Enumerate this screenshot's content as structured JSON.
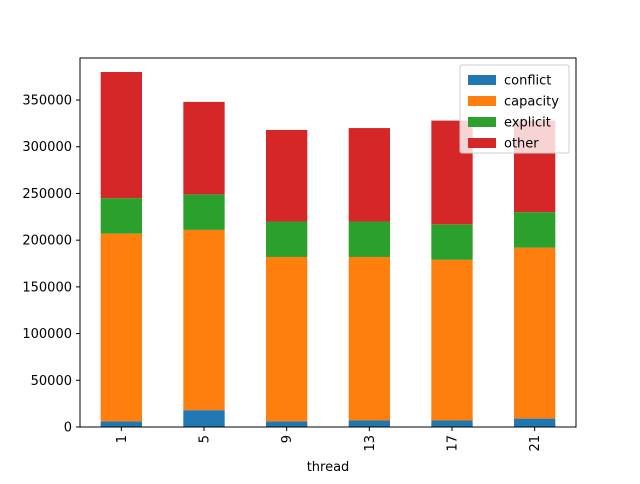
{
  "chart_data": {
    "type": "bar",
    "stacked": true,
    "categories": [
      "1",
      "5",
      "9",
      "13",
      "17",
      "21"
    ],
    "xlabel": "thread",
    "ylabel": "",
    "ylim": [
      0,
      395000
    ],
    "yticks": [
      0,
      50000,
      100000,
      150000,
      200000,
      250000,
      300000,
      350000
    ],
    "ytick_labels": [
      "0",
      "50000",
      "100000",
      "150000",
      "200000",
      "250000",
      "300000",
      "350000"
    ],
    "legend_position": "top-right",
    "grid": false,
    "series": [
      {
        "name": "conflict",
        "color": "#1f77b4",
        "values": [
          6000,
          18000,
          6000,
          7000,
          7000,
          9000
        ]
      },
      {
        "name": "capacity",
        "color": "#ff7f0e",
        "values": [
          201000,
          193000,
          176000,
          175000,
          172000,
          183000
        ]
      },
      {
        "name": "explicit",
        "color": "#2ca02c",
        "values": [
          38000,
          38000,
          38000,
          38000,
          38000,
          38000
        ]
      },
      {
        "name": "other",
        "color": "#d62728",
        "values": [
          135000,
          99000,
          98000,
          100000,
          111000,
          98000
        ]
      }
    ]
  }
}
